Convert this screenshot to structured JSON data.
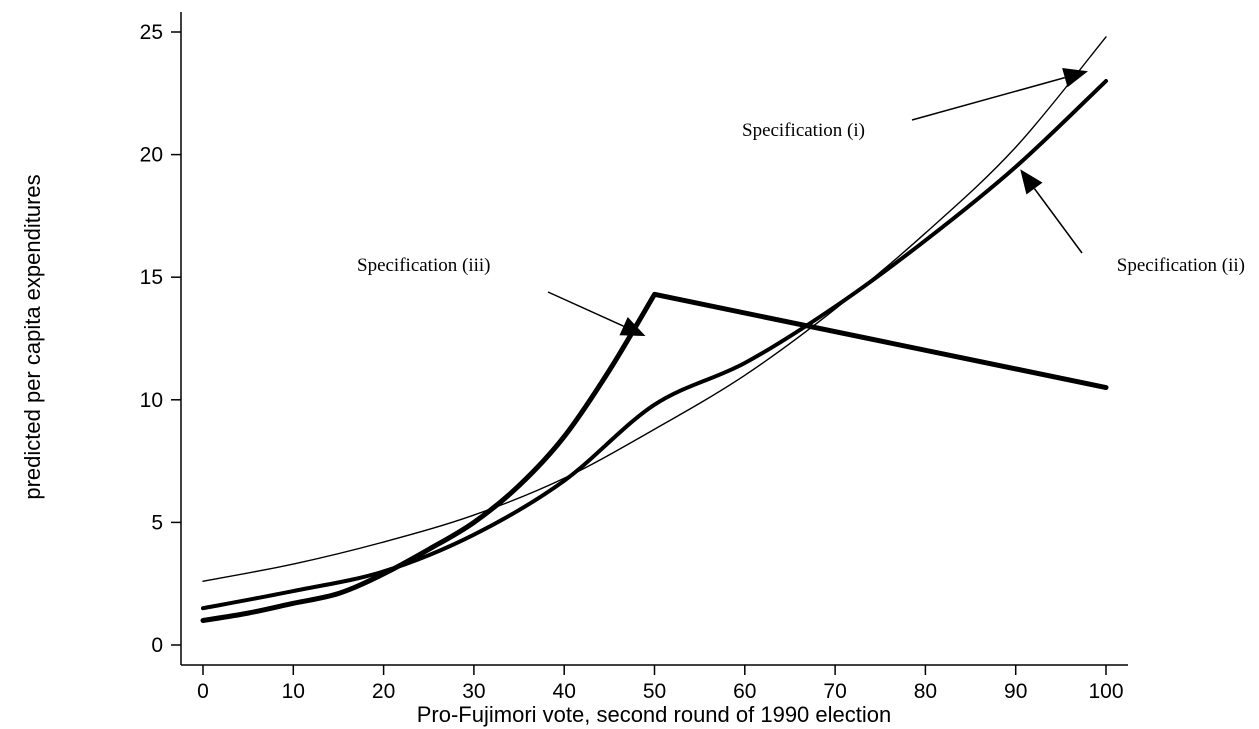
{
  "chart_data": {
    "type": "line",
    "title": "",
    "xlabel": "Pro-Fujimori vote, second round of 1990 election",
    "ylabel": "predicted per capita expenditures",
    "xlim": [
      0,
      100
    ],
    "ylim": [
      0,
      25
    ],
    "x_ticks": [
      "0",
      "10",
      "20",
      "30",
      "40",
      "50",
      "60",
      "70",
      "80",
      "90",
      "100"
    ],
    "y_ticks": [
      "0",
      "5",
      "10",
      "15",
      "20",
      "25"
    ],
    "grid": false,
    "legend": "none",
    "series": [
      {
        "name": "Specification (i)",
        "x": [
          0,
          10,
          20,
          30,
          40,
          50,
          60,
          70,
          80,
          90,
          100
        ],
        "y": [
          2.6,
          3.3,
          4.2,
          5.3,
          6.8,
          8.8,
          11.0,
          13.7,
          16.8,
          20.3,
          24.8
        ]
      },
      {
        "name": "Specification (ii)",
        "x": [
          0,
          10,
          20,
          30,
          40,
          50,
          60,
          70,
          80,
          90,
          100
        ],
        "y": [
          1.5,
          2.2,
          3.0,
          4.5,
          6.7,
          9.8,
          11.5,
          13.8,
          16.5,
          19.5,
          23.0
        ]
      },
      {
        "name": "Specification (iii)",
        "x": [
          0,
          5,
          10,
          15,
          20,
          25,
          30,
          35,
          40,
          45,
          50,
          55,
          60,
          65,
          70,
          75,
          80,
          85,
          90,
          95,
          100
        ],
        "y": [
          1.0,
          1.3,
          1.7,
          2.1,
          2.9,
          3.9,
          5.0,
          6.5,
          8.5,
          11.2,
          14.3,
          13.9,
          13.5,
          13.1,
          12.7,
          12.3,
          12.0,
          11.6,
          11.2,
          10.9,
          10.5
        ]
      }
    ],
    "annotations": [
      {
        "text": "Specification (i)",
        "series": 0,
        "point_x": 98,
        "point_y": 23.4
      },
      {
        "text": "Specification (ii)",
        "series": 1,
        "point_x": 90.5,
        "point_y": 19.4
      },
      {
        "text": "Specification (iii)",
        "series": 2,
        "point_x": 49,
        "point_y": 12.6
      }
    ],
    "styles": {
      "line_color": "#000000"
    }
  }
}
